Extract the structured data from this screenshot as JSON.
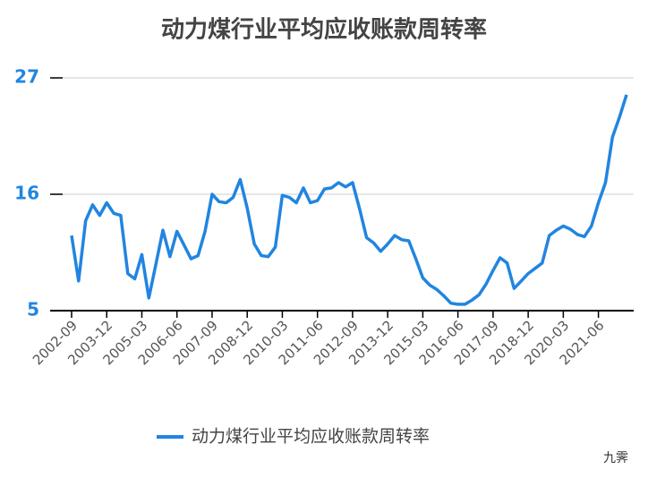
{
  "chart_data": {
    "type": "line",
    "title": "动力煤行业平均应收账款周转率",
    "categories": [
      "2002-09",
      null,
      null,
      null,
      null,
      "2003-12",
      null,
      null,
      null,
      null,
      "2005-03",
      null,
      null,
      null,
      null,
      "2006-06",
      null,
      null,
      null,
      null,
      "2007-09",
      null,
      null,
      null,
      null,
      "2008-12",
      null,
      null,
      null,
      null,
      "2010-03",
      null,
      null,
      null,
      null,
      "2011-06",
      null,
      null,
      null,
      null,
      "2012-09",
      null,
      null,
      null,
      null,
      "2013-12",
      null,
      null,
      null,
      null,
      "2015-03",
      null,
      null,
      null,
      null,
      "2016-06",
      null,
      null,
      null,
      null,
      "2017-09",
      null,
      null,
      null,
      null,
      "2018-12",
      null,
      null,
      null,
      null,
      "2020-03",
      null,
      null,
      null,
      null,
      "2021-06",
      null,
      null,
      null,
      null
    ],
    "series": [
      {
        "name": "动力煤行业平均应收账款周转率",
        "color": "#2185e0",
        "values": [
          12.1,
          7.8,
          13.5,
          15.0,
          14.0,
          15.2,
          14.2,
          14.0,
          8.5,
          8.0,
          10.3,
          6.2,
          9.4,
          12.6,
          10.1,
          12.5,
          11.2,
          9.9,
          10.2,
          12.5,
          16.0,
          15.3,
          15.2,
          15.7,
          17.4,
          14.7,
          11.3,
          10.2,
          10.1,
          11.0,
          15.9,
          15.7,
          15.2,
          16.6,
          15.2,
          15.4,
          16.5,
          16.6,
          17.1,
          16.7,
          17.1,
          14.6,
          11.9,
          11.4,
          10.6,
          11.3,
          12.1,
          11.7,
          11.6,
          9.9,
          8.1,
          7.4,
          7.0,
          6.4,
          5.7,
          5.6,
          5.6,
          6.0,
          6.5,
          7.5,
          8.8,
          10.0,
          9.5,
          7.1,
          7.8,
          8.5,
          9.0,
          9.5,
          12.1,
          12.6,
          13.0,
          12.7,
          12.2,
          12.0,
          13.0,
          15.2,
          17.1,
          21.4,
          23.3,
          25.4
        ]
      }
    ],
    "ylim": [
      5,
      27
    ],
    "yticks": [
      5,
      16,
      27
    ],
    "grid": true,
    "legend": "bottom",
    "watermark": "九霁"
  }
}
